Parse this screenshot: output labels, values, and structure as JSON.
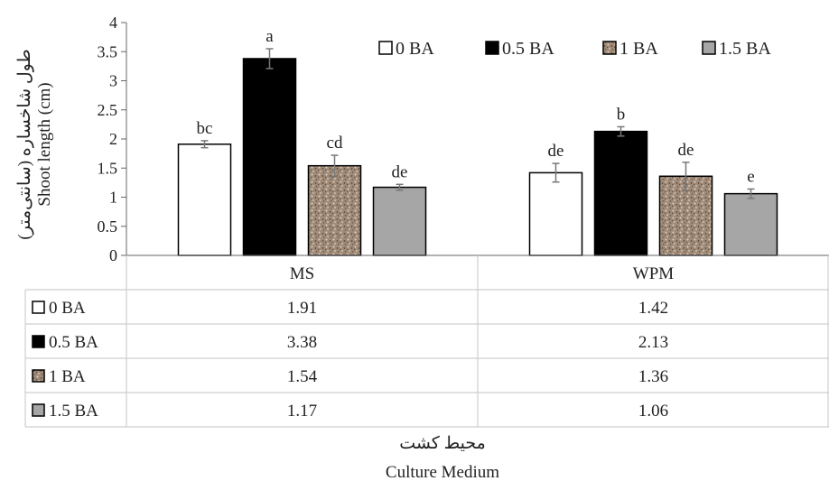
{
  "chart_data": {
    "type": "bar",
    "title": "",
    "categories": [
      "MS",
      "WPM"
    ],
    "series": [
      {
        "name": "0 BA",
        "color": "#ffffff",
        "fill": "white",
        "values": [
          1.91,
          1.42
        ],
        "errors": [
          0.06,
          0.16
        ],
        "letters": [
          "bc",
          "de"
        ]
      },
      {
        "name": "0.5 BA",
        "color": "#000000",
        "fill": "black",
        "values": [
          3.38,
          2.13
        ],
        "errors": [
          0.17,
          0.08
        ],
        "letters": [
          "a",
          "b"
        ]
      },
      {
        "name": "1 BA",
        "color": "#a08a78",
        "fill": "speckled-tan",
        "values": [
          1.54,
          1.36
        ],
        "errors": [
          0.18,
          0.24
        ],
        "letters": [
          "cd",
          "de"
        ]
      },
      {
        "name": "1.5 BA",
        "color": "#a6a6a6",
        "fill": "gray",
        "values": [
          1.17,
          1.06
        ],
        "errors": [
          0.05,
          0.08
        ],
        "letters": [
          "de",
          "e"
        ]
      }
    ],
    "ylabel_fa": "طول شاخساره (سانتی‌متر)",
    "ylabel_en": "Shoot length (cm)",
    "xlabel_fa": "محیط کشت",
    "xlabel_en": "Culture Medium",
    "ylim": [
      0,
      4
    ],
    "yticks": [
      "0",
      "0.5",
      "1",
      "1.5",
      "2",
      "2.5",
      "3",
      "3.5",
      "4"
    ],
    "grid": false,
    "legend": "top-right",
    "data_table": true
  }
}
